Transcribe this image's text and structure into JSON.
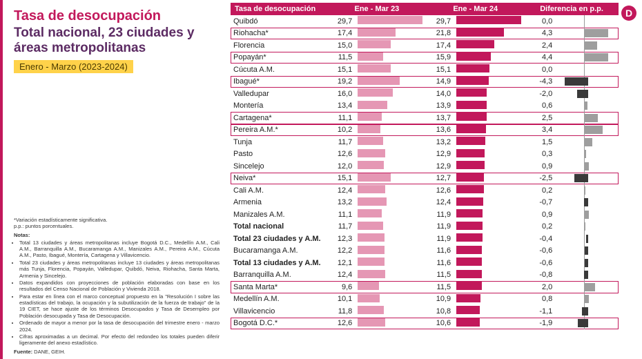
{
  "title": {
    "main": "Tasa de desocupación",
    "sub": "Total nacional, 23 ciudades y áreas metropolitanas",
    "period": "Enero - Marzo (2023-2024)"
  },
  "notes": {
    "sig": "*Variación estadísticamente significativa.",
    "pp": "p.p.: puntos porcentuales.",
    "hdr": "Notas:",
    "items": [
      "Total 13 ciudades y áreas metropolitanas incluye Bogotá D.C., Medellín A.M., Cali A.M., Barranquilla A.M., Bucaramanga A.M., Manizales A.M., Pereira A.M., Cúcuta A.M., Pasto, Ibagué, Montería, Cartagena y Villavicencio.",
      "Total 23 ciudades y áreas metropolitanas incluye 13 ciudades y áreas metropolitanas más Tunja, Florencia, Popayán, Valledupar, Quibdó, Neiva, Riohacha, Santa Marta, Armenia y Sincelejo.",
      "Datos expandidos con proyecciones de población elaboradas con base en los resultados del Censo Nacional de Población y Vivienda 2018.",
      "Para estar en línea con el marco conceptual propuesto en la \"Resolución I sobre las estadísticas del trabajo, la ocupación y la subutilización de la fuerza de trabajo\" de la 19 CIET, se hace ajuste de los términos Desocupados y Tasa de Desempleo por Población desocupada y Tasa de Desocupación.",
      "Ordenado de mayor a menor por la tasa de desocupación del trimestre enero - marzo 2024.",
      "Cifras aproximadas a un decimal. Por efecto del redondeo los totales pueden diferir ligeramente del anexo estadístico."
    ],
    "source_label": "Fuente:",
    "source_val": " DANE, GEIH."
  },
  "logo": "D",
  "table": {
    "headers": [
      "Tasa de desocupación",
      "Ene - Mar 23",
      "Ene - Mar 24",
      "Diferencia en p.p."
    ],
    "max23": 30,
    "max24": 30,
    "maxdiff": 5,
    "colors": {
      "bar23": "#e597b4",
      "bar24": "#c2185b",
      "diff_pos": "#9e9e9e",
      "diff_neg": "#3a3a3a",
      "header_bg": "#c2185b"
    },
    "rows": [
      {
        "city": "Quibdó",
        "v23": "29,7",
        "n23": 29.7,
        "v24": "29,7",
        "n24": 29.7,
        "diff": "0,0",
        "nd": 0.0,
        "bold": false,
        "hl": false
      },
      {
        "city": "Riohacha*",
        "v23": "17,4",
        "n23": 17.4,
        "v24": "21,8",
        "n24": 21.8,
        "diff": "4,3",
        "nd": 4.3,
        "bold": false,
        "hl": true
      },
      {
        "city": "Florencia",
        "v23": "15,0",
        "n23": 15.0,
        "v24": "17,4",
        "n24": 17.4,
        "diff": "2,4",
        "nd": 2.4,
        "bold": false,
        "hl": false
      },
      {
        "city": "Popayán*",
        "v23": "11,5",
        "n23": 11.5,
        "v24": "15,9",
        "n24": 15.9,
        "diff": "4,4",
        "nd": 4.4,
        "bold": false,
        "hl": true
      },
      {
        "city": "Cúcuta A.M.",
        "v23": "15,1",
        "n23": 15.1,
        "v24": "15,1",
        "n24": 15.1,
        "diff": "0,0",
        "nd": 0.0,
        "bold": false,
        "hl": false
      },
      {
        "city": "Ibagué*",
        "v23": "19,2",
        "n23": 19.2,
        "v24": "14,9",
        "n24": 14.9,
        "diff": "-4,3",
        "nd": -4.3,
        "bold": false,
        "hl": true
      },
      {
        "city": "Valledupar",
        "v23": "16,0",
        "n23": 16.0,
        "v24": "14,0",
        "n24": 14.0,
        "diff": "-2,0",
        "nd": -2.0,
        "bold": false,
        "hl": false
      },
      {
        "city": "Montería",
        "v23": "13,4",
        "n23": 13.4,
        "v24": "13,9",
        "n24": 13.9,
        "diff": "0,6",
        "nd": 0.6,
        "bold": false,
        "hl": false
      },
      {
        "city": "Cartagena*",
        "v23": "11,1",
        "n23": 11.1,
        "v24": "13,7",
        "n24": 13.7,
        "diff": "2,5",
        "nd": 2.5,
        "bold": false,
        "hl": true
      },
      {
        "city": "Pereira A.M.*",
        "v23": "10,2",
        "n23": 10.2,
        "v24": "13,6",
        "n24": 13.6,
        "diff": "3,4",
        "nd": 3.4,
        "bold": false,
        "hl": true
      },
      {
        "city": "Tunja",
        "v23": "11,7",
        "n23": 11.7,
        "v24": "13,2",
        "n24": 13.2,
        "diff": "1,5",
        "nd": 1.5,
        "bold": false,
        "hl": false
      },
      {
        "city": "Pasto",
        "v23": "12,6",
        "n23": 12.6,
        "v24": "12,9",
        "n24": 12.9,
        "diff": "0,3",
        "nd": 0.3,
        "bold": false,
        "hl": false
      },
      {
        "city": "Sincelejo",
        "v23": "12,0",
        "n23": 12.0,
        "v24": "12,9",
        "n24": 12.9,
        "diff": "0,9",
        "nd": 0.9,
        "bold": false,
        "hl": false
      },
      {
        "city": "Neiva*",
        "v23": "15,1",
        "n23": 15.1,
        "v24": "12,7",
        "n24": 12.7,
        "diff": "-2,5",
        "nd": -2.5,
        "bold": false,
        "hl": true
      },
      {
        "city": "Cali A.M.",
        "v23": "12,4",
        "n23": 12.4,
        "v24": "12,6",
        "n24": 12.6,
        "diff": "0,2",
        "nd": 0.2,
        "bold": false,
        "hl": false
      },
      {
        "city": "Armenia",
        "v23": "13,2",
        "n23": 13.2,
        "v24": "12,4",
        "n24": 12.4,
        "diff": "-0,7",
        "nd": -0.7,
        "bold": false,
        "hl": false
      },
      {
        "city": "Manizales A.M.",
        "v23": "11,1",
        "n23": 11.1,
        "v24": "11,9",
        "n24": 11.9,
        "diff": "0,9",
        "nd": 0.9,
        "bold": false,
        "hl": false
      },
      {
        "city": "Total nacional",
        "v23": "11,7",
        "n23": 11.7,
        "v24": "11,9",
        "n24": 11.9,
        "diff": "0,2",
        "nd": 0.2,
        "bold": true,
        "hl": false
      },
      {
        "city": "Total 23 ciudades y A.M.",
        "v23": "12,3",
        "n23": 12.3,
        "v24": "11,9",
        "n24": 11.9,
        "diff": "-0,4",
        "nd": -0.4,
        "bold": true,
        "hl": false
      },
      {
        "city": "Bucaramanga A.M.",
        "v23": "12,2",
        "n23": 12.2,
        "v24": "11,6",
        "n24": 11.6,
        "diff": "-0,6",
        "nd": -0.6,
        "bold": false,
        "hl": false
      },
      {
        "city": "Total 13 ciudades y A.M.",
        "v23": "12,1",
        "n23": 12.1,
        "v24": "11,6",
        "n24": 11.6,
        "diff": "-0,6",
        "nd": -0.6,
        "bold": true,
        "hl": false
      },
      {
        "city": "Barranquilla A.M.",
        "v23": "12,4",
        "n23": 12.4,
        "v24": "11,5",
        "n24": 11.5,
        "diff": "-0,8",
        "nd": -0.8,
        "bold": false,
        "hl": false
      },
      {
        "city": "Santa Marta*",
        "v23": "9,6",
        "n23": 9.6,
        "v24": "11,5",
        "n24": 11.5,
        "diff": "2,0",
        "nd": 2.0,
        "bold": false,
        "hl": true
      },
      {
        "city": "Medellín A.M.",
        "v23": "10,1",
        "n23": 10.1,
        "v24": "10,9",
        "n24": 10.9,
        "diff": "0,8",
        "nd": 0.8,
        "bold": false,
        "hl": false
      },
      {
        "city": "Villavicencio",
        "v23": "11,8",
        "n23": 11.8,
        "v24": "10,8",
        "n24": 10.8,
        "diff": "-1,1",
        "nd": -1.1,
        "bold": false,
        "hl": false
      },
      {
        "city": "Bogotá D.C.*",
        "v23": "12,6",
        "n23": 12.6,
        "v24": "10,6",
        "n24": 10.6,
        "diff": "-1,9",
        "nd": -1.9,
        "bold": false,
        "hl": true
      }
    ]
  }
}
